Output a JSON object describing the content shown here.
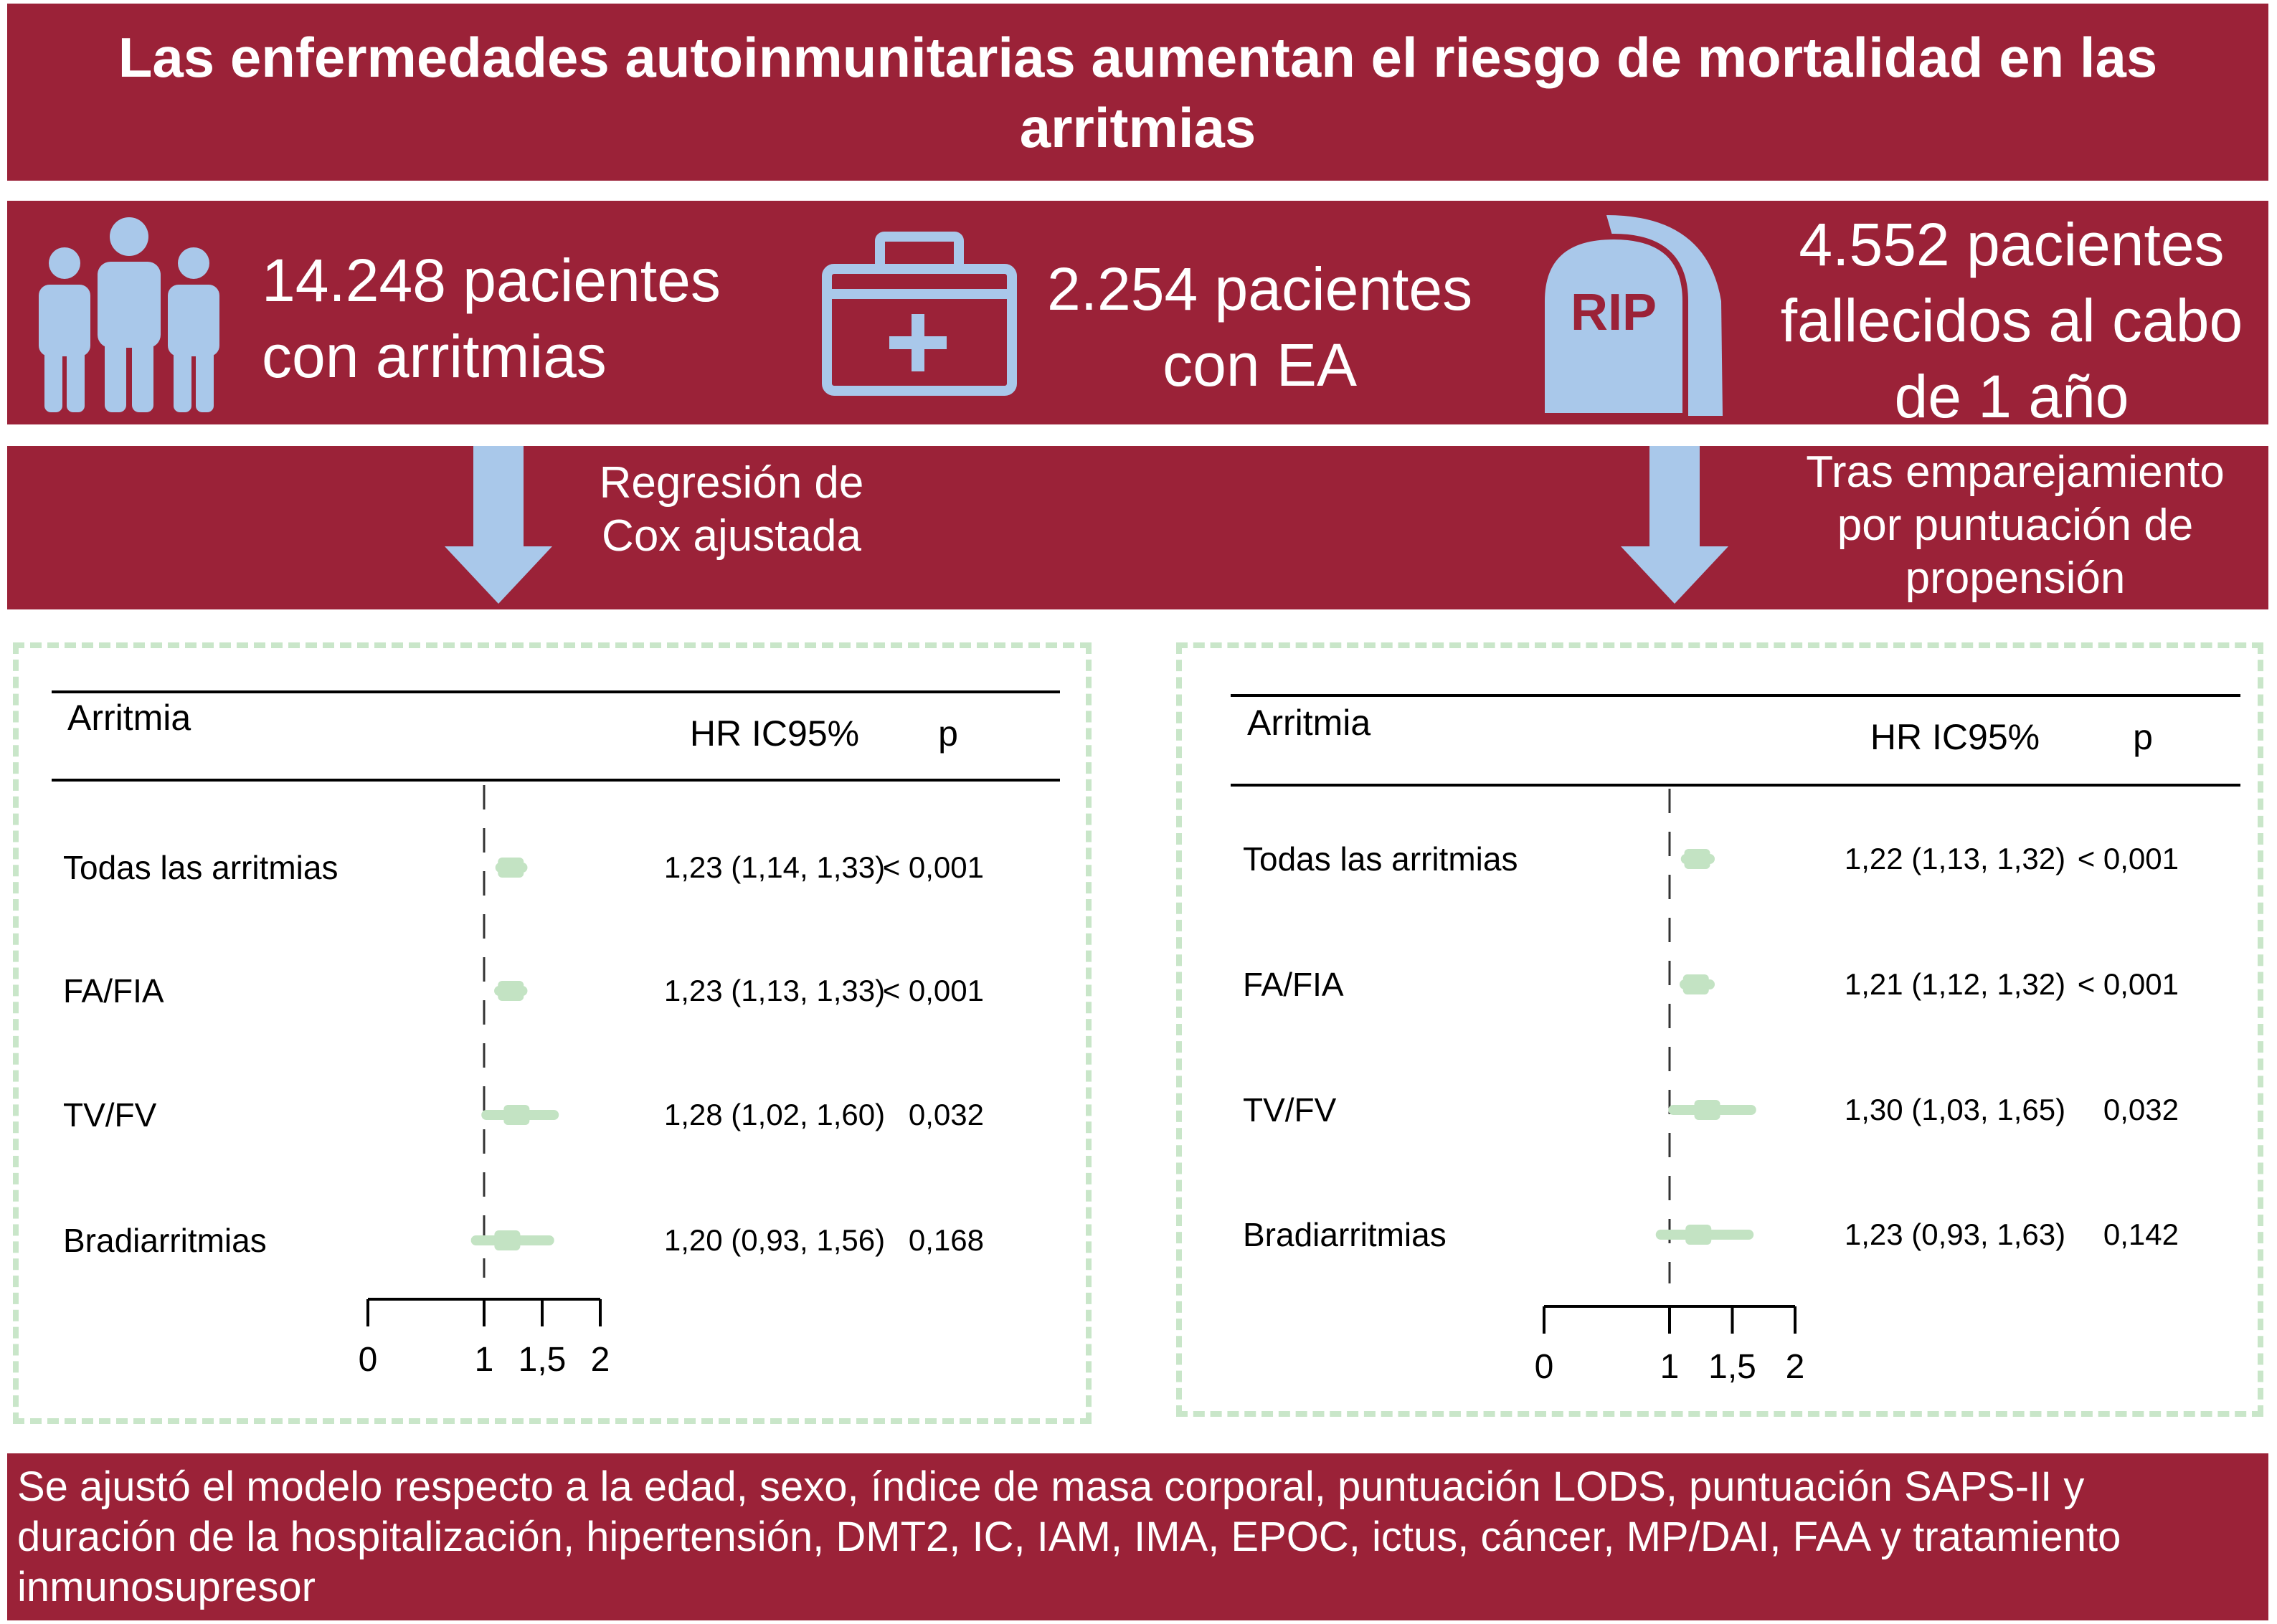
{
  "title": "Las enfermedades autoinmunitarias aumentan el riesgo de mortalidad en las arritmias",
  "stats": [
    {
      "line1": "14.248 pacientes",
      "line2": "con arritmias",
      "icon": "people-icon"
    },
    {
      "line1": "2.254 pacientes",
      "line2": "con EA",
      "icon": "medical-kit-icon"
    },
    {
      "line1": "4.552 pacientes",
      "line2": "fallecidos al cabo",
      "line3": "de 1 año",
      "icon": "tombstone-icon",
      "icon_text": "RIP"
    }
  ],
  "methods": {
    "left": {
      "line1": "Regresión de",
      "line2": "Cox ajustada"
    },
    "right": {
      "line1": "Tras emparejamiento",
      "line2": "por puntuación de",
      "line3": "propensión"
    }
  },
  "footnote": "Se ajustó el modelo respecto a la edad, sexo, índice de masa corporal, puntuación LODS, puntuación SAPS-II y duración de la hospitalización, hipertensión, DMT2, IC, IAM, IMA, EPOC, ictus, cáncer, MP/DAI, FAA y tratamiento inmunosupresor",
  "colors": {
    "band": "#9b2238",
    "icon": "#a9c8ea",
    "marker": "#c3e3c3",
    "dash_border": "#c9e6c9"
  },
  "chart_data": [
    {
      "type": "forest",
      "col_label": "Arritmia",
      "hr_label": "HR IC95%",
      "p_label": "p",
      "categories": [
        "Todas las arritmias",
        "FA/FIA",
        "TV/FV",
        "Bradiarritmias"
      ],
      "hr": [
        1.23,
        1.23,
        1.28,
        1.2
      ],
      "ci_low": [
        1.14,
        1.13,
        1.02,
        0.93
      ],
      "ci_high": [
        1.33,
        1.33,
        1.6,
        1.56
      ],
      "hr_text": [
        "1,23 (1,14, 1,33)",
        "1,23 (1,13, 1,33)",
        "1,28 (1,02, 1,60)",
        "1,20 (0,93, 1,56)"
      ],
      "p_text": [
        "< 0,001",
        "< 0,001",
        "0,032",
        "0,168"
      ],
      "reference": 1,
      "xlim": [
        0,
        2
      ],
      "ticks": [
        0,
        1,
        1.5,
        2
      ],
      "tick_labels": [
        "0",
        "1",
        "1,5",
        "2"
      ]
    },
    {
      "type": "forest",
      "col_label": "Arritmia",
      "hr_label": "HR IC95%",
      "p_label": "p",
      "categories": [
        "Todas las arritmias",
        "FA/FIA",
        "TV/FV",
        "Bradiarritmias"
      ],
      "hr": [
        1.22,
        1.21,
        1.3,
        1.23
      ],
      "ci_low": [
        1.13,
        1.12,
        1.03,
        0.93
      ],
      "ci_high": [
        1.32,
        1.32,
        1.65,
        1.63
      ],
      "hr_text": [
        "1,22 (1,13, 1,32)",
        "1,21 (1,12, 1,32)",
        "1,30 (1,03, 1,65)",
        "1,23 (0,93, 1,63)"
      ],
      "p_text": [
        "< 0,001",
        "< 0,001",
        "0,032",
        "0,142"
      ],
      "reference": 1,
      "xlim": [
        0,
        2
      ],
      "ticks": [
        0,
        1,
        1.5,
        2
      ],
      "tick_labels": [
        "0",
        "1",
        "1,5",
        "2"
      ]
    }
  ]
}
